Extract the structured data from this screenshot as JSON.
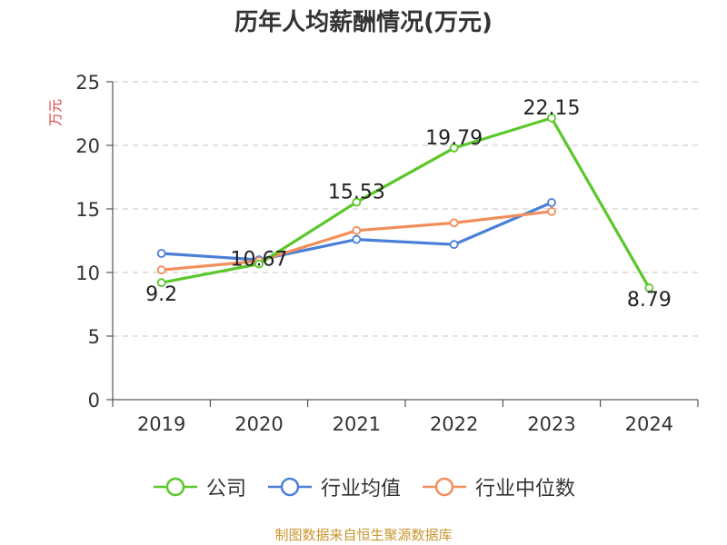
{
  "title": "历年人均薪酬情况(万元)",
  "source": "制图数据来自恒生聚源数据库",
  "chart_data": {
    "type": "line",
    "title": "历年人均薪酬情况(万元)",
    "ylabel": "万元",
    "ylim": [
      0,
      25
    ],
    "yticks": [
      0,
      5,
      10,
      15,
      20,
      25
    ],
    "categories": [
      "2019",
      "2020",
      "2021",
      "2022",
      "2023",
      "2024"
    ],
    "grid": true,
    "legend_position": "bottom",
    "series": [
      {
        "name": "公司",
        "color": "#5ac72a",
        "values": [
          9.2,
          10.67,
          15.53,
          19.79,
          22.15,
          8.79
        ],
        "labels": [
          "9.2",
          "10.67",
          "15.53",
          "19.79",
          "22.15",
          "8.79"
        ]
      },
      {
        "name": "行业均值",
        "color": "#4a7fd8",
        "values": [
          11.5,
          11.0,
          12.6,
          12.2,
          15.5,
          null
        ]
      },
      {
        "name": "行业中位数",
        "color": "#f28e5c",
        "values": [
          10.2,
          10.9,
          13.3,
          13.9,
          14.8,
          null
        ]
      }
    ]
  }
}
